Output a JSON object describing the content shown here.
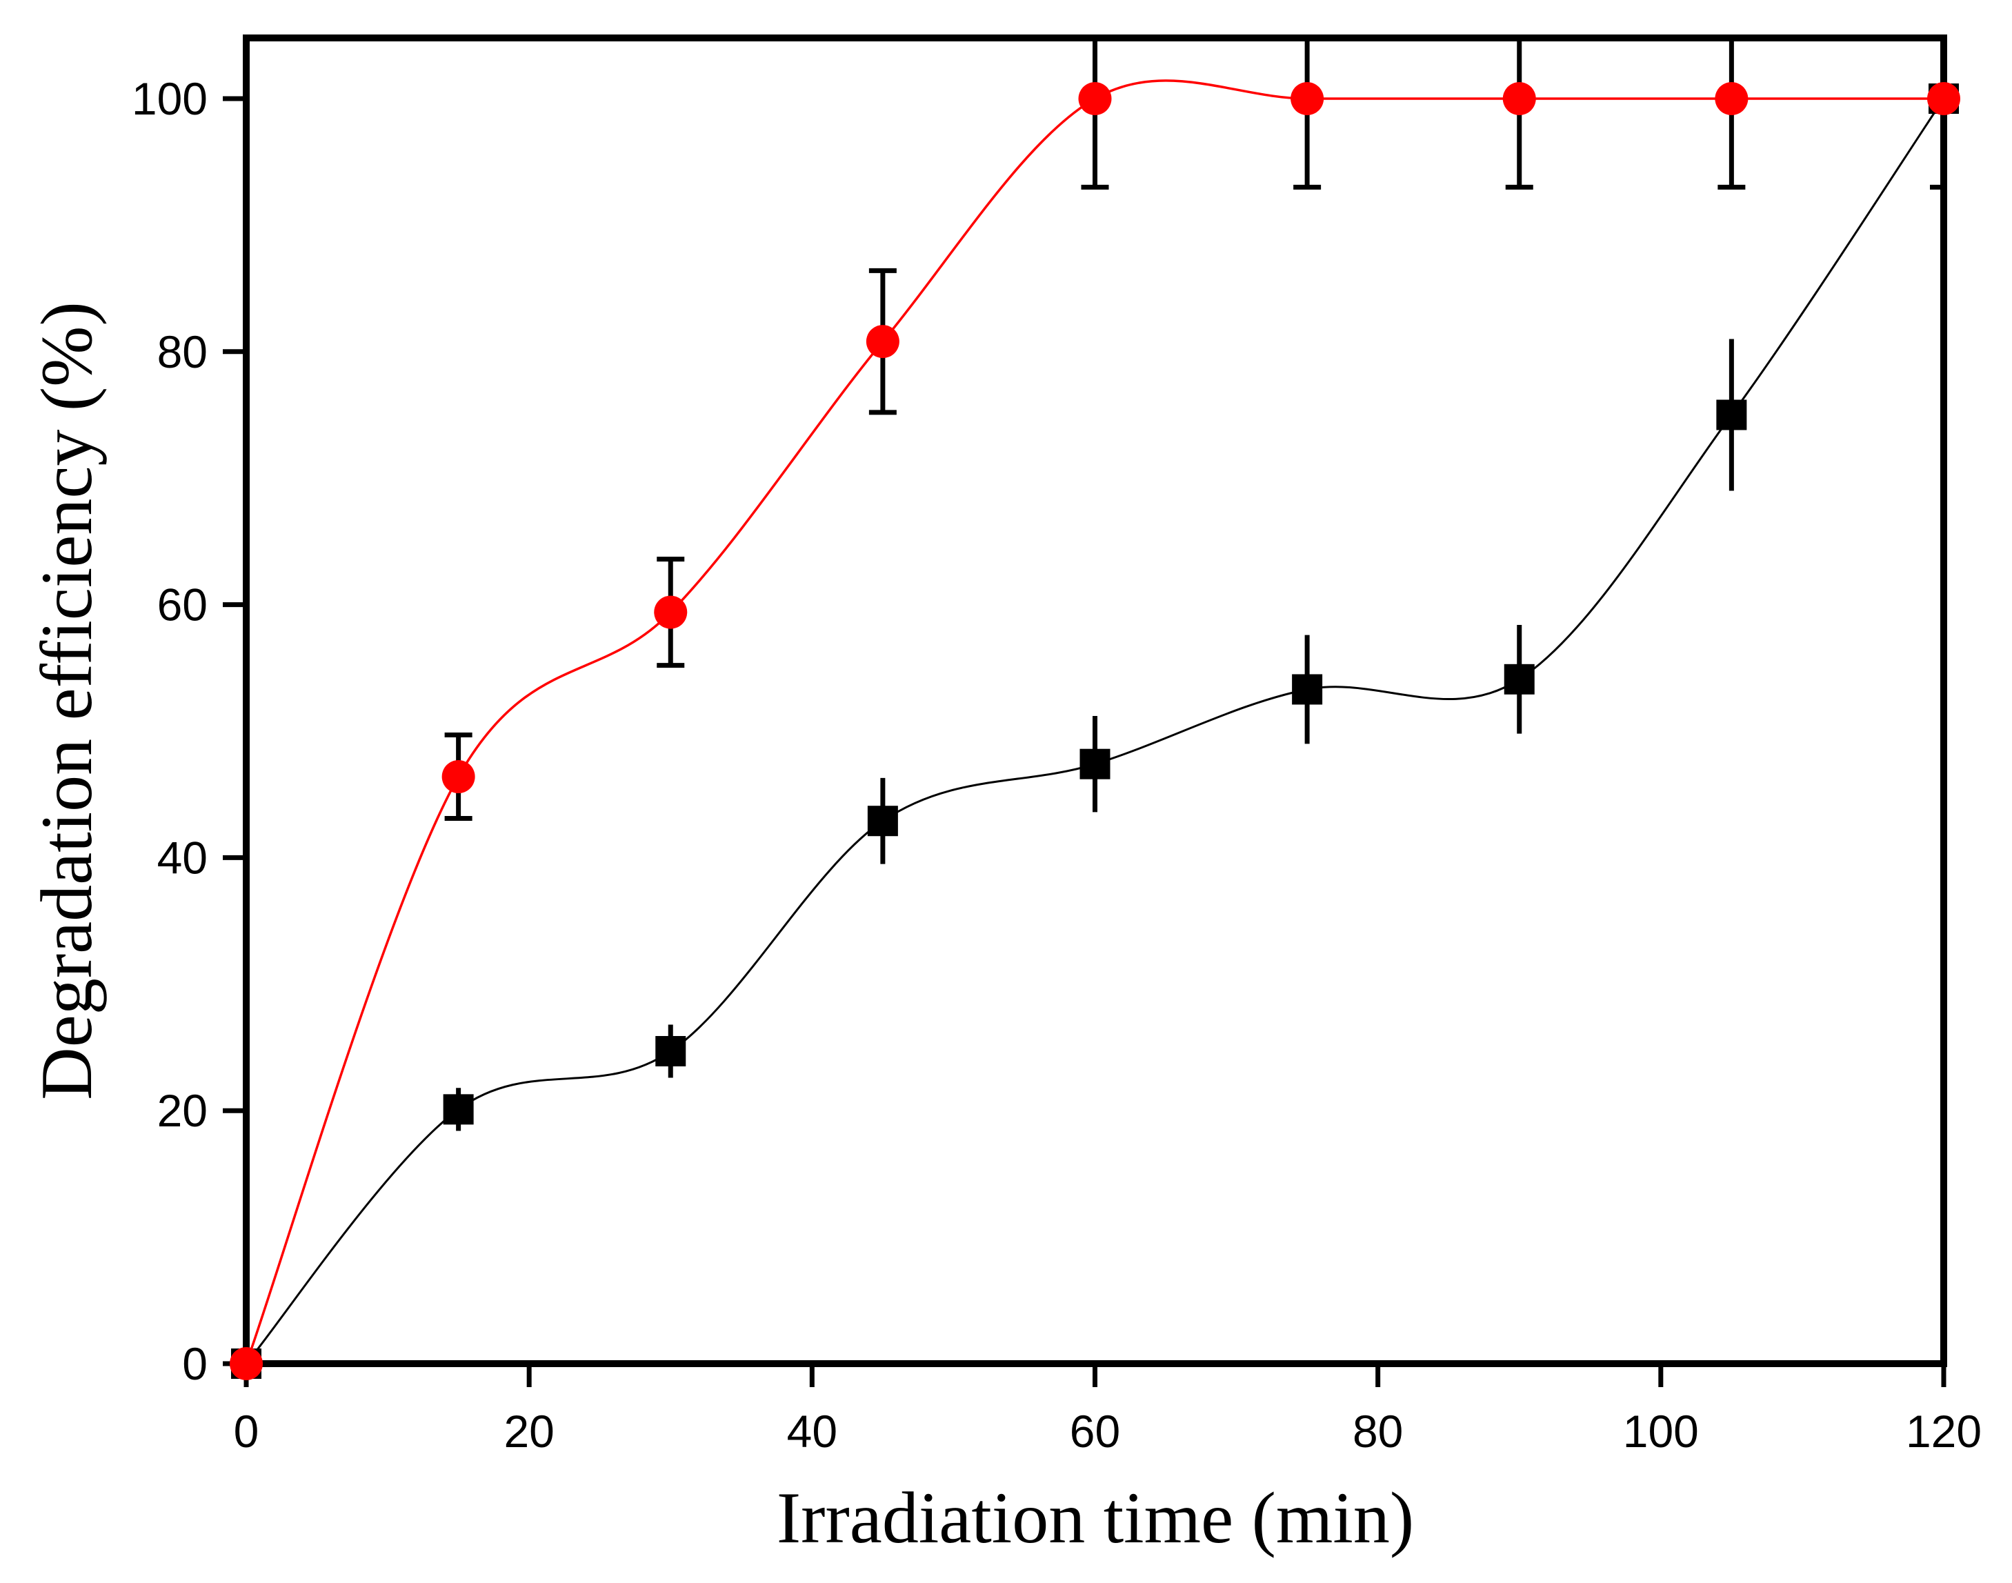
{
  "figure": {
    "background": "#ffffff",
    "axis_color": "#000000"
  },
  "chart_data": {
    "type": "line",
    "title": "",
    "xlabel": "Irradiation time (min)",
    "ylabel": "Degradation efficiency (%)",
    "xlim": [
      0,
      120
    ],
    "ylim": [
      0,
      104.8
    ],
    "x_ticks": [
      0,
      20,
      40,
      60,
      80,
      100,
      120
    ],
    "y_ticks": [
      0,
      20,
      40,
      60,
      80,
      100
    ],
    "grid": false,
    "legend": "none",
    "x": [
      0,
      15,
      30,
      45,
      60,
      75,
      90,
      105,
      120
    ],
    "series": [
      {
        "name": "black-squares",
        "marker": "square",
        "color": "#000000",
        "line_style": "smooth",
        "values": [
          0,
          20.1,
          24.7,
          42.9,
          47.4,
          53.3,
          54.1,
          75,
          100
        ],
        "errors": [
          0,
          1.7,
          2.1,
          3.4,
          3.8,
          4.3,
          4.3,
          6,
          0
        ],
        "error_caps": false
      },
      {
        "name": "red-circles",
        "marker": "circle",
        "color": "#ff0000",
        "line_style": "smooth",
        "values": [
          0,
          46.4,
          59.4,
          80.8,
          100,
          100,
          100,
          100,
          100
        ],
        "errors": [
          0,
          3.3,
          4.2,
          5.6,
          7,
          7,
          7,
          7,
          7
        ],
        "error_caps": true
      }
    ]
  }
}
